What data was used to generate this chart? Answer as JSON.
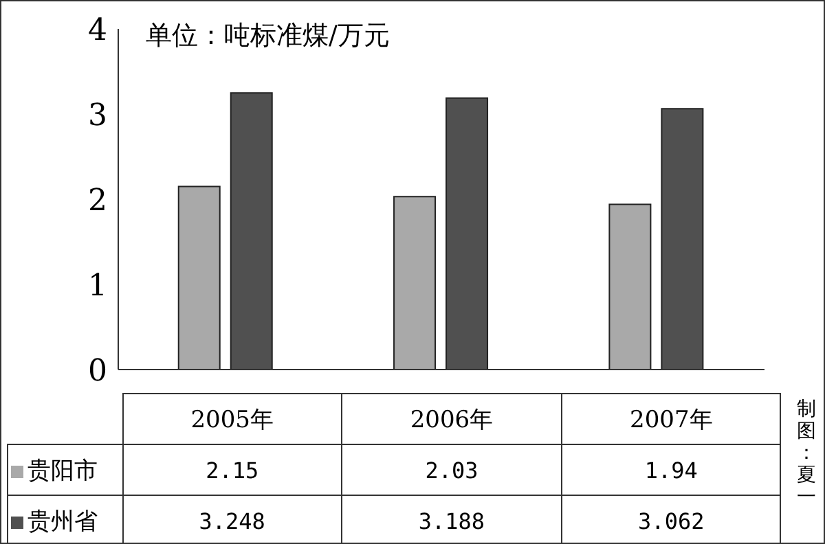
{
  "chart_data": {
    "type": "bar",
    "title": "单位：吨标准煤/万元",
    "categories": [
      "2005年",
      "2006年",
      "2007年"
    ],
    "series": [
      {
        "name": "贵阳市",
        "color": "#a9a9a9",
        "values": [
          2.15,
          2.03,
          1.94
        ]
      },
      {
        "name": "贵州省",
        "color": "#505050",
        "values": [
          3.248,
          3.188,
          3.062
        ]
      }
    ],
    "ylim": [
      0,
      4
    ],
    "legend": "bottom left",
    "yticks": [
      0,
      1,
      2,
      3,
      4
    ],
    "grid": false,
    "data_labels": true,
    "annotations": [
      "制图：夏一"
    ]
  }
}
